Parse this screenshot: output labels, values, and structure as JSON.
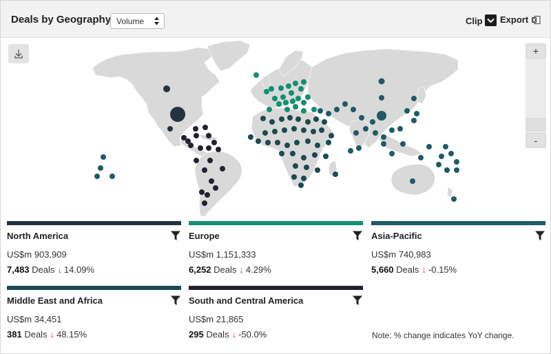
{
  "header": {
    "title": "Deals by Geography",
    "select_value": "Volume",
    "clip_label": "Clip",
    "export_label": "Export"
  },
  "map": {
    "download_icon": "download-icon",
    "zoom_in_label": "+",
    "zoom_out_label": "-"
  },
  "colors": {
    "north_america": "#25323f",
    "europe": "#138f72",
    "asia_pacific": "#1f5a66",
    "middle_east_africa": "#1b4a4f",
    "south_central_america": "#251f30",
    "down_arrow": "#d9322b",
    "land": "#d9d9d9"
  },
  "regions": [
    {
      "name": "North America",
      "value": "US$m 903,909",
      "deals": "7,483",
      "deals_label": "Deals",
      "arrow": "↓",
      "change": "14.09%"
    },
    {
      "name": "Europe",
      "value": "US$m 1,151,333",
      "deals": "6,252",
      "deals_label": "Deals",
      "arrow": "↓",
      "change": "4.29%"
    },
    {
      "name": "Asia-Pacific",
      "value": "US$m 740,983",
      "deals": "5,660",
      "deals_label": "Deals",
      "arrow": "↓",
      "change": "-0.15%"
    },
    {
      "name": "Middle East and Africa",
      "value": "US$m 34,451",
      "deals": "381",
      "deals_label": "Deals",
      "arrow": "↓",
      "change": "48.15%"
    },
    {
      "name": "South and Central America",
      "value": "US$m 21,865",
      "deals": "295",
      "deals_label": "Deals",
      "arrow": "↓",
      "change": "-50.0%"
    }
  ],
  "note": "Note: % change indicates YoY change."
}
